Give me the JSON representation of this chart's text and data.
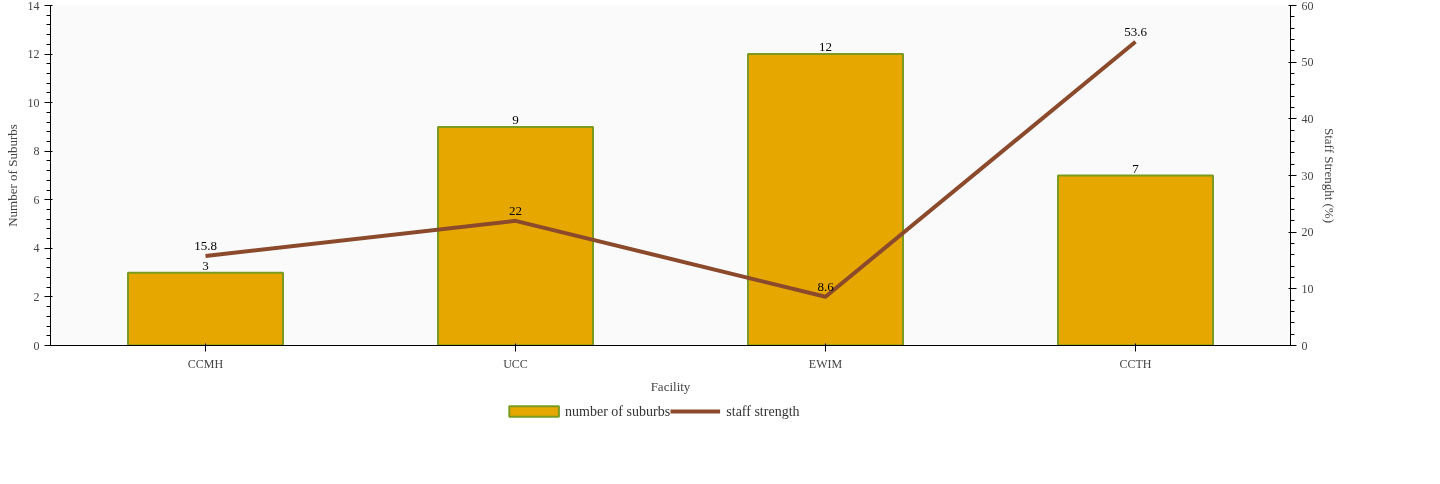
{
  "chart_data": {
    "type": "bar",
    "xlabel": "Facility",
    "ylabel": "Number of Suburbs",
    "y2label": "Staff Strenght (%)",
    "categories": [
      "CCMH",
      "UCC",
      "EWIM",
      "CCTH"
    ],
    "series": [
      {
        "name": "number of suburbs",
        "color": "#e6a800",
        "values": [
          3,
          9,
          12,
          7
        ]
      },
      {
        "name": "staff strength",
        "type": "line",
        "axis": "y2",
        "color": "#8b4a2b",
        "values": [
          15.8,
          22,
          8.6,
          53.6
        ]
      }
    ],
    "ylim": [
      0,
      14
    ],
    "yticks": [
      0,
      2,
      4,
      6,
      8,
      10,
      12,
      14
    ],
    "y2lim": [
      0,
      60
    ],
    "y2ticks": [
      0,
      10,
      20,
      30,
      40,
      50,
      60
    ],
    "data_labels": true,
    "grid": false,
    "legend": "bottom"
  }
}
